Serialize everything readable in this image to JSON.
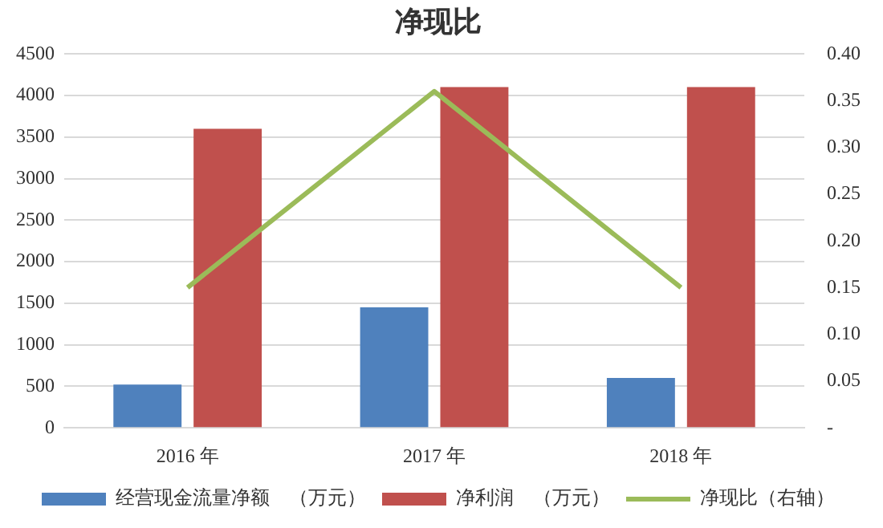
{
  "chart_data": {
    "type": "bar",
    "title": "净现比",
    "categories": [
      "2016 年",
      "2017 年",
      "2018 年"
    ],
    "series": [
      {
        "name": "经营现金流量净额　（万元）",
        "color": "#4f81bd",
        "values": [
          520,
          1450,
          600
        ]
      },
      {
        "name": "净利润　（万元）",
        "color": "#c0504d",
        "values": [
          3600,
          4100,
          4100
        ]
      },
      {
        "name": "净现比（右轴）",
        "color": "#9bbb59",
        "type": "line",
        "axis": "y2",
        "values": [
          0.15,
          0.36,
          0.15
        ]
      }
    ],
    "ylim": [
      0,
      4500
    ],
    "yticks": [
      0,
      500,
      1000,
      1500,
      2000,
      2500,
      3000,
      3500,
      4000,
      4500
    ],
    "y2lim": [
      0,
      0.4
    ],
    "y2ticks": [
      {
        "value": 0,
        "label": "-"
      },
      {
        "value": 0.05,
        "label": "0.05"
      },
      {
        "value": 0.1,
        "label": "0.10"
      },
      {
        "value": 0.15,
        "label": "0.15"
      },
      {
        "value": 0.2,
        "label": "0.20"
      },
      {
        "value": 0.25,
        "label": "0.25"
      },
      {
        "value": 0.3,
        "label": "0.30"
      },
      {
        "value": 0.35,
        "label": "0.35"
      },
      {
        "value": 0.4,
        "label": "0.40"
      }
    ],
    "grid": "y",
    "legend": "bottom",
    "marker": "none",
    "line_style": "solid"
  }
}
